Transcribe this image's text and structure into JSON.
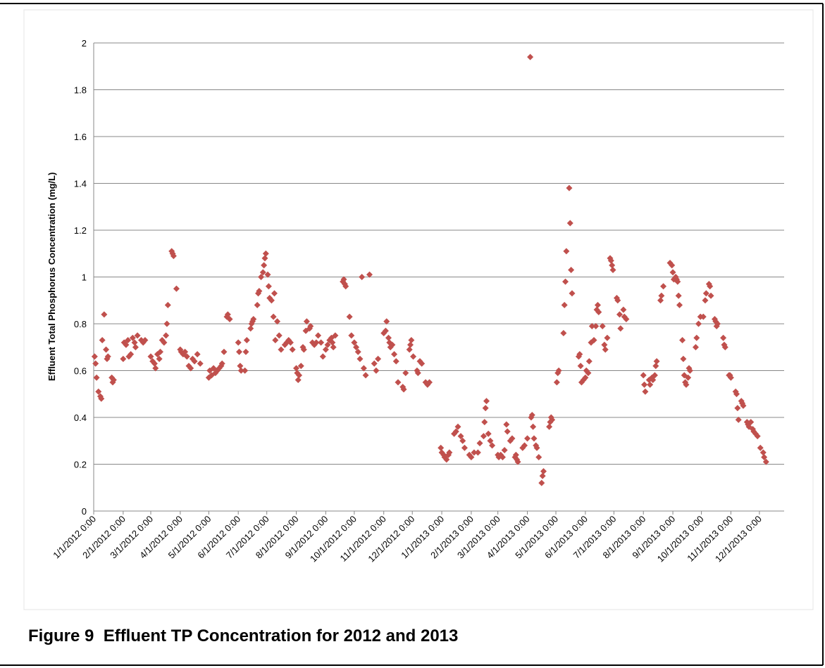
{
  "caption": "Figure 9  Effluent TP Concentration for 2012 and 2013",
  "chart_data": {
    "type": "scatter",
    "y_label": "Effluent Total Phosphorus Concentration (mg/L)",
    "ylim": [
      0,
      2
    ],
    "yticks": [
      0,
      0.2,
      0.4,
      0.6,
      0.8,
      1,
      1.2,
      1.4,
      1.6,
      1.8,
      2
    ],
    "grid": true,
    "xlim": [
      "2012-01-01",
      "2013-12-27"
    ],
    "xticks": [
      {
        "value": "2012-01-01",
        "label": "1/1/2012 0:00"
      },
      {
        "value": "2012-02-01",
        "label": "2/1/2012 0:00"
      },
      {
        "value": "2012-03-01",
        "label": "3/1/2012 0:00"
      },
      {
        "value": "2012-04-01",
        "label": "4/1/2012 0:00"
      },
      {
        "value": "2012-05-01",
        "label": "5/1/2012 0:00"
      },
      {
        "value": "2012-06-01",
        "label": "6/1/2012 0:00"
      },
      {
        "value": "2012-07-01",
        "label": "7/1/2012 0:00"
      },
      {
        "value": "2012-08-01",
        "label": "8/1/2012 0:00"
      },
      {
        "value": "2012-09-01",
        "label": "9/1/2012 0:00"
      },
      {
        "value": "2012-10-01",
        "label": "10/1/2012 0:00"
      },
      {
        "value": "2012-11-01",
        "label": "11/1/2012 0:00"
      },
      {
        "value": "2012-12-01",
        "label": "12/1/2012 0:00"
      },
      {
        "value": "2013-01-01",
        "label": "1/1/2013 0:00"
      },
      {
        "value": "2013-02-01",
        "label": "2/1/2013 0:00"
      },
      {
        "value": "2013-03-01",
        "label": "3/1/2013 0:00"
      },
      {
        "value": "2013-04-01",
        "label": "4/1/2013 0:00"
      },
      {
        "value": "2013-05-01",
        "label": "5/1/2013 0:00"
      },
      {
        "value": "2013-06-01",
        "label": "6/1/2013 0:00"
      },
      {
        "value": "2013-07-01",
        "label": "7/1/2013 0:00"
      },
      {
        "value": "2013-08-01",
        "label": "8/1/2013 0:00"
      },
      {
        "value": "2013-09-01",
        "label": "9/1/2013 0:00"
      },
      {
        "value": "2013-10-01",
        "label": "10/1/2013 0:00"
      },
      {
        "value": "2013-11-01",
        "label": "11/1/2013 0:00"
      },
      {
        "value": "2013-12-01",
        "label": "12/1/2013 0:00"
      }
    ],
    "color": "#c0504d",
    "x": [
      "2012-01-02",
      "2012-01-03",
      "2012-01-04",
      "2012-01-06",
      "2012-01-08",
      "2012-01-09",
      "2012-01-10",
      "2012-01-12",
      "2012-01-14",
      "2012-01-15",
      "2012-01-16",
      "2012-01-20",
      "2012-01-21",
      "2012-01-22",
      "2012-02-01",
      "2012-02-02",
      "2012-02-04",
      "2012-02-06",
      "2012-02-07",
      "2012-02-09",
      "2012-02-11",
      "2012-02-13",
      "2012-02-14",
      "2012-02-16",
      "2012-02-20",
      "2012-02-22",
      "2012-02-24",
      "2012-03-01",
      "2012-03-03",
      "2012-03-05",
      "2012-03-06",
      "2012-03-08",
      "2012-03-10",
      "2012-03-11",
      "2012-03-13",
      "2012-03-15",
      "2012-03-17",
      "2012-03-18",
      "2012-03-19",
      "2012-03-23",
      "2012-03-24",
      "2012-03-25",
      "2012-03-28",
      "2012-04-01",
      "2012-04-02",
      "2012-04-04",
      "2012-04-06",
      "2012-04-08",
      "2012-04-10",
      "2012-04-12",
      "2012-04-14",
      "2012-04-16",
      "2012-04-19",
      "2012-04-22",
      "2012-05-01",
      "2012-05-02",
      "2012-05-04",
      "2012-05-06",
      "2012-05-08",
      "2012-05-10",
      "2012-05-12",
      "2012-05-14",
      "2012-05-15",
      "2012-05-17",
      "2012-05-20",
      "2012-05-21",
      "2012-05-23",
      "2012-06-01",
      "2012-06-02",
      "2012-06-03",
      "2012-06-04",
      "2012-06-08",
      "2012-06-09",
      "2012-06-10",
      "2012-06-14",
      "2012-06-15",
      "2012-06-16",
      "2012-06-17",
      "2012-06-21",
      "2012-06-22",
      "2012-06-23",
      "2012-06-25",
      "2012-06-27",
      "2012-06-28",
      "2012-06-29",
      "2012-06-30",
      "2012-07-02",
      "2012-07-03",
      "2012-07-04",
      "2012-07-06",
      "2012-07-08",
      "2012-07-09",
      "2012-07-10",
      "2012-07-12",
      "2012-07-14",
      "2012-07-16",
      "2012-07-20",
      "2012-07-22",
      "2012-07-24",
      "2012-07-26",
      "2012-07-28",
      "2012-08-01",
      "2012-08-02",
      "2012-08-03",
      "2012-08-04",
      "2012-08-06",
      "2012-08-08",
      "2012-08-09",
      "2012-08-11",
      "2012-08-12",
      "2012-08-15",
      "2012-08-16",
      "2012-08-18",
      "2012-08-20",
      "2012-08-22",
      "2012-08-24",
      "2012-08-27",
      "2012-08-29",
      "2012-09-01",
      "2012-09-03",
      "2012-09-05",
      "2012-09-07",
      "2012-09-08",
      "2012-09-09",
      "2012-09-11",
      "2012-09-19",
      "2012-09-20",
      "2012-09-21",
      "2012-09-22",
      "2012-09-26",
      "2012-09-28",
      "2012-10-01",
      "2012-10-03",
      "2012-10-05",
      "2012-10-07",
      "2012-10-09",
      "2012-10-11",
      "2012-10-13",
      "2012-10-17",
      "2012-10-22",
      "2012-10-24",
      "2012-10-26",
      "2012-11-01",
      "2012-11-03",
      "2012-11-04",
      "2012-11-06",
      "2012-11-07",
      "2012-11-08",
      "2012-11-10",
      "2012-11-12",
      "2012-11-14",
      "2012-11-16",
      "2012-11-21",
      "2012-11-22",
      "2012-11-24",
      "2012-11-28",
      "2012-11-29",
      "2012-11-30",
      "2012-12-02",
      "2012-12-06",
      "2012-12-07",
      "2012-12-09",
      "2012-12-11",
      "2012-12-15",
      "2012-12-17",
      "2012-12-19",
      "2012-12-31",
      "2013-01-01",
      "2013-01-03",
      "2013-01-04",
      "2013-01-06",
      "2013-01-08",
      "2013-01-09",
      "2013-01-14",
      "2013-01-16",
      "2013-01-18",
      "2013-01-21",
      "2013-01-23",
      "2013-01-25",
      "2013-01-30",
      "2013-02-01",
      "2013-02-04",
      "2013-02-08",
      "2013-02-10",
      "2013-02-14",
      "2013-02-15",
      "2013-02-16",
      "2013-02-17",
      "2013-02-19",
      "2013-02-21",
      "2013-02-23",
      "2013-03-01",
      "2013-03-02",
      "2013-03-04",
      "2013-03-06",
      "2013-03-08",
      "2013-03-10",
      "2013-03-11",
      "2013-03-14",
      "2013-03-16",
      "2013-03-19",
      "2013-03-20",
      "2013-03-21",
      "2013-03-22",
      "2013-03-27",
      "2013-03-29",
      "2013-04-01",
      "2013-04-04",
      "2013-04-05",
      "2013-04-06",
      "2013-04-07",
      "2013-04-08",
      "2013-04-10",
      "2013-04-11",
      "2013-04-13",
      "2013-04-16",
      "2013-04-17",
      "2013-04-18",
      "2013-04-24",
      "2013-04-25",
      "2013-04-26",
      "2013-04-27",
      "2013-05-02",
      "2013-05-03",
      "2013-05-04",
      "2013-05-09",
      "2013-05-10",
      "2013-05-11",
      "2013-05-12",
      "2013-05-15",
      "2013-05-16",
      "2013-05-17",
      "2013-05-18",
      "2013-05-25",
      "2013-05-26",
      "2013-05-27",
      "2013-05-28",
      "2013-05-30",
      "2013-06-01",
      "2013-06-02",
      "2013-06-04",
      "2013-06-05",
      "2013-06-07",
      "2013-06-08",
      "2013-06-10",
      "2013-06-12",
      "2013-06-13",
      "2013-06-14",
      "2013-06-15",
      "2013-06-19",
      "2013-06-21",
      "2013-06-22",
      "2013-06-24",
      "2013-06-27",
      "2013-06-28",
      "2013-06-29",
      "2013-06-30",
      "2013-07-04",
      "2013-07-05",
      "2013-07-07",
      "2013-07-08",
      "2013-07-11",
      "2013-07-12",
      "2013-07-14",
      "2013-08-01",
      "2013-08-02",
      "2013-08-03",
      "2013-08-07",
      "2013-08-08",
      "2013-08-10",
      "2013-08-11",
      "2013-08-13",
      "2013-08-14",
      "2013-08-15",
      "2013-08-19",
      "2013-08-20",
      "2013-08-22",
      "2013-08-29",
      "2013-08-31",
      "2013-09-01",
      "2013-09-02",
      "2013-09-04",
      "2013-09-05",
      "2013-09-06",
      "2013-09-07",
      "2013-09-08",
      "2013-09-11",
      "2013-09-12",
      "2013-09-13",
      "2013-09-14",
      "2013-09-15",
      "2013-09-17",
      "2013-09-18",
      "2013-09-19",
      "2013-09-25",
      "2013-09-26",
      "2013-09-28",
      "2013-09-30",
      "2013-10-03",
      "2013-10-05",
      "2013-10-06",
      "2013-10-09",
      "2013-10-10",
      "2013-10-11",
      "2013-10-15",
      "2013-10-16",
      "2013-10-17",
      "2013-10-18",
      "2013-10-24",
      "2013-10-25",
      "2013-10-26",
      "2013-10-30",
      "2013-10-31",
      "2013-11-01",
      "2013-11-06",
      "2013-11-07",
      "2013-11-08",
      "2013-11-09",
      "2013-11-12",
      "2013-11-13",
      "2013-11-14",
      "2013-11-18",
      "2013-11-19",
      "2013-11-20",
      "2013-11-22",
      "2013-11-24",
      "2013-11-25",
      "2013-11-27",
      "2013-11-29",
      "2013-12-02",
      "2013-12-05",
      "2013-12-06",
      "2013-12-08"
    ],
    "values": [
      0.66,
      0.63,
      0.57,
      0.51,
      0.49,
      0.48,
      0.73,
      0.84,
      0.69,
      0.65,
      0.66,
      0.57,
      0.55,
      0.56,
      0.65,
      0.72,
      0.71,
      0.73,
      0.66,
      0.67,
      0.74,
      0.72,
      0.7,
      0.75,
      0.73,
      0.72,
      0.73,
      0.66,
      0.64,
      0.63,
      0.61,
      0.67,
      0.65,
      0.68,
      0.73,
      0.72,
      0.75,
      0.8,
      0.88,
      1.11,
      1.1,
      1.09,
      0.95,
      0.69,
      0.68,
      0.67,
      0.68,
      0.66,
      0.62,
      0.61,
      0.65,
      0.64,
      0.67,
      0.63,
      0.57,
      0.6,
      0.58,
      0.61,
      0.59,
      0.6,
      0.61,
      0.62,
      0.63,
      0.68,
      0.83,
      0.84,
      0.82,
      0.72,
      0.68,
      0.62,
      0.6,
      0.6,
      0.68,
      0.73,
      0.78,
      0.8,
      0.81,
      0.82,
      0.88,
      0.93,
      0.94,
      1.0,
      1.02,
      1.05,
      1.08,
      1.1,
      1.01,
      0.96,
      0.91,
      0.9,
      0.83,
      0.93,
      0.73,
      0.81,
      0.75,
      0.69,
      0.71,
      0.72,
      0.73,
      0.72,
      0.69,
      0.61,
      0.59,
      0.56,
      0.58,
      0.62,
      0.7,
      0.69,
      0.77,
      0.81,
      0.78,
      0.79,
      0.72,
      0.71,
      0.72,
      0.75,
      0.72,
      0.66,
      0.69,
      0.71,
      0.73,
      0.74,
      0.72,
      0.7,
      0.75,
      0.98,
      0.99,
      0.97,
      0.96,
      0.83,
      0.75,
      0.72,
      0.7,
      0.68,
      0.65,
      1.0,
      0.61,
      0.58,
      1.01,
      0.63,
      0.6,
      0.65,
      0.76,
      0.77,
      0.81,
      0.74,
      0.72,
      0.7,
      0.71,
      0.67,
      0.64,
      0.55,
      0.53,
      0.52,
      0.59,
      0.69,
      0.71,
      0.73,
      0.66,
      0.6,
      0.59,
      0.64,
      0.63,
      0.55,
      0.54,
      0.55,
      0.27,
      0.25,
      0.24,
      0.23,
      0.22,
      0.24,
      0.25,
      0.33,
      0.34,
      0.36,
      0.32,
      0.3,
      0.27,
      0.24,
      0.23,
      0.25,
      0.25,
      0.29,
      0.32,
      0.38,
      0.44,
      0.47,
      0.33,
      0.3,
      0.28,
      0.24,
      0.23,
      0.24,
      0.23,
      0.26,
      0.37,
      0.34,
      0.3,
      0.31,
      0.23,
      0.24,
      0.22,
      0.21,
      0.27,
      0.28,
      0.31,
      1.94,
      0.4,
      0.41,
      0.36,
      0.31,
      0.28,
      0.27,
      0.23,
      0.12,
      0.15,
      0.17,
      0.36,
      0.38,
      0.4,
      0.39,
      0.55,
      0.59,
      0.6,
      0.76,
      0.88,
      0.98,
      1.11,
      1.38,
      1.23,
      1.03,
      0.93,
      0.66,
      0.67,
      0.62,
      0.55,
      0.56,
      0.57,
      0.6,
      0.59,
      0.64,
      0.72,
      0.79,
      0.73,
      0.79,
      0.86,
      0.88,
      0.85,
      0.79,
      0.71,
      0.69,
      0.74,
      1.08,
      1.07,
      1.05,
      1.03,
      0.91,
      0.9,
      0.84,
      0.78,
      0.86,
      0.83,
      0.82,
      0.58,
      0.54,
      0.51,
      0.56,
      0.54,
      0.57,
      0.56,
      0.58,
      0.62,
      0.64,
      0.9,
      0.92,
      0.96,
      1.06,
      1.05,
      1.02,
      0.99,
      1.0,
      0.99,
      0.98,
      0.92,
      0.88,
      0.73,
      0.65,
      0.58,
      0.55,
      0.54,
      0.57,
      0.61,
      0.6,
      0.7,
      0.74,
      0.8,
      0.83,
      0.83,
      0.9,
      0.93,
      0.97,
      0.96,
      0.92,
      0.82,
      0.81,
      0.79,
      0.8,
      0.74,
      0.71,
      0.7,
      0.58,
      0.58,
      0.57,
      0.51,
      0.5,
      0.44,
      0.39,
      0.47,
      0.46,
      0.45,
      0.38,
      0.37,
      0.36,
      0.38,
      0.35,
      0.34,
      0.33,
      0.32,
      0.27,
      0.25,
      0.23,
      0.21
    ]
  }
}
